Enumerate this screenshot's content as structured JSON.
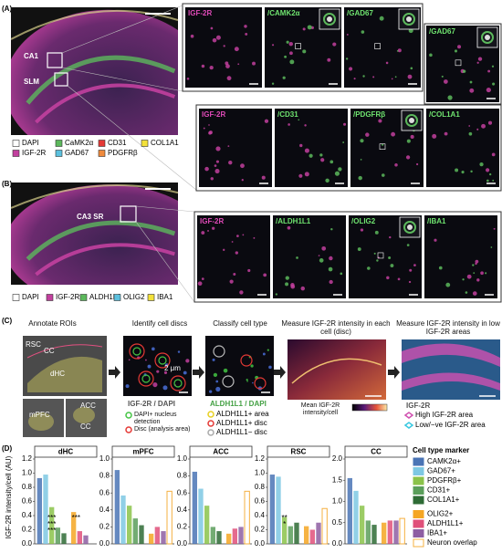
{
  "panel_labels": [
    "(A)",
    "(B)",
    "(C)",
    "(D)"
  ],
  "panel_a": {
    "regions": [
      "CA1",
      "SLM"
    ],
    "legend": [
      {
        "name": "DAPI",
        "color": "#ffffff"
      },
      {
        "name": "CaMK2α",
        "color": "#5cb85c"
      },
      {
        "name": "CD31",
        "color": "#e53935"
      },
      {
        "name": "COL1A1",
        "color": "#f3e13a"
      },
      {
        "name": "IGF-2R",
        "color": "#c2409e"
      },
      {
        "name": "GAD67",
        "color": "#5bc0de"
      },
      {
        "name": "PDGFRβ",
        "color": "#f08a3c"
      }
    ],
    "tiles_top": [
      "IGF-2R",
      "/CAMK2α",
      "/GAD67"
    ],
    "tile_side": "/GAD67",
    "tiles_bottom": [
      "IGF-2R",
      "/CD31",
      "/PDGFRβ",
      "/COL1A1"
    ]
  },
  "panel_b": {
    "regions": [
      "CA3 SR"
    ],
    "legend": [
      {
        "name": "DAPI",
        "color": "#ffffff"
      },
      {
        "name": "IGF-2R",
        "color": "#c2409e"
      },
      {
        "name": "ALDH1L1",
        "color": "#5cb85c"
      },
      {
        "name": "OLIG2",
        "color": "#5bc0de"
      },
      {
        "name": "IBA1",
        "color": "#f3e13a"
      }
    ],
    "tiles": [
      "IGF-2R",
      "/ALDH1L1",
      "/OLIG2",
      "/IBA1"
    ]
  },
  "panel_c": {
    "steps": [
      {
        "title": "Annotate ROIs",
        "labels": [
          "RSC",
          "CC",
          "dHC",
          "mPFC",
          "ACC",
          "CC"
        ]
      },
      {
        "title": "Identify cell discs",
        "scale": "2 μm",
        "caption": "IGF-2R / DAPI",
        "legend": [
          "DAPI+ nucleus detection",
          "Disc (analysis area)"
        ]
      },
      {
        "title": "Classify cell type",
        "caption": "ALDH1L1 / DAPI",
        "legend": [
          "ALDH1L1+ area",
          "ALDH1L1+ disc",
          "ALDH1L1− disc"
        ]
      },
      {
        "title": "Measure IGF-2R intensity in each cell (disc)",
        "colorbar": "Mean IGF-2R intensity/cell"
      },
      {
        "title": "Measure IGF-2R intensity in low IGF-2R areas",
        "caption": "IGF-2R",
        "legend": [
          "High IGF-2R area",
          "Low/−ve IGF-2R area"
        ]
      }
    ]
  },
  "y_label": "IGF-2R intensity/cell (AU)",
  "chart_legend": {
    "title": "Cell type marker",
    "items": [
      {
        "name": "CAMK2α+",
        "color": "#4a74b5"
      },
      {
        "name": "GAD67+",
        "color": "#7ec8e3"
      },
      {
        "name": "PDGFRβ+",
        "color": "#8bc34a"
      },
      {
        "name": "CD31+",
        "color": "#5a9e5a"
      },
      {
        "name": "COL1A1+",
        "color": "#2e6b35"
      },
      {
        "name": "OLIG2+",
        "color": "#f5a623"
      },
      {
        "name": "ALDH1L1+",
        "color": "#e0507a"
      },
      {
        "name": "IBA1+",
        "color": "#8e5ea2"
      },
      {
        "name": "Neuron overlap",
        "color": "#f5b041"
      }
    ]
  },
  "chart_data": [
    {
      "type": "bar",
      "title": "dHC",
      "values": [
        0.93,
        0.98,
        0.52,
        0.23,
        0.15,
        0.45,
        0.18,
        0.12,
        null
      ],
      "ylim": [
        0,
        1.2
      ],
      "yticks": [
        {
          "value": 0,
          "label": "0.0"
        },
        0.2,
        0.4,
        0.6,
        0.8,
        {
          "value": 1,
          "label": "1.0"
        },
        1.2
      ],
      "annotations": [
        "***",
        "***",
        "***",
        "***"
      ]
    },
    {
      "type": "bar",
      "title": "mPFC",
      "values": [
        0.87,
        0.57,
        0.45,
        0.3,
        0.22,
        0.12,
        0.2,
        0.15,
        0.62
      ],
      "ylim": [
        0,
        1
      ],
      "yticks": [
        {
          "value": 0,
          "label": "0.0"
        },
        0.2,
        0.4,
        0.6,
        0.8,
        {
          "value": 1,
          "label": "1.0"
        }
      ],
      "annotations": []
    },
    {
      "type": "bar",
      "title": "ACC",
      "values": [
        0.85,
        0.65,
        0.45,
        0.2,
        0.15,
        0.12,
        0.18,
        0.2,
        0.62
      ],
      "ylim": [
        0,
        1
      ],
      "yticks": [
        {
          "value": 0,
          "label": "0.0"
        },
        0.2,
        0.4,
        0.6,
        0.8,
        {
          "value": 1,
          "label": "1.0"
        }
      ],
      "annotations": []
    },
    {
      "type": "bar",
      "title": "RSC",
      "values": [
        0.98,
        0.95,
        0.38,
        0.25,
        0.3,
        0.25,
        0.2,
        0.3,
        0.5
      ],
      "ylim": [
        0,
        1.2
      ],
      "yticks": [
        {
          "value": 0,
          "label": "0.0"
        },
        0.2,
        0.4,
        0.6,
        0.8,
        {
          "value": 1,
          "label": "1.0"
        },
        1.2
      ],
      "annotations": [
        "**",
        "*"
      ]
    },
    {
      "type": "bar",
      "title": "CC",
      "values": [
        1.55,
        1.25,
        0.9,
        0.55,
        0.45,
        0.5,
        0.55,
        0.55,
        0.6
      ],
      "ylim": [
        0,
        2
      ],
      "yticks": [
        {
          "value": 0,
          "label": "0.0"
        },
        0.5,
        {
          "value": 1,
          "label": "1.0"
        },
        1.5,
        {
          "value": 2,
          "label": "2.0"
        }
      ],
      "annotations": []
    }
  ]
}
